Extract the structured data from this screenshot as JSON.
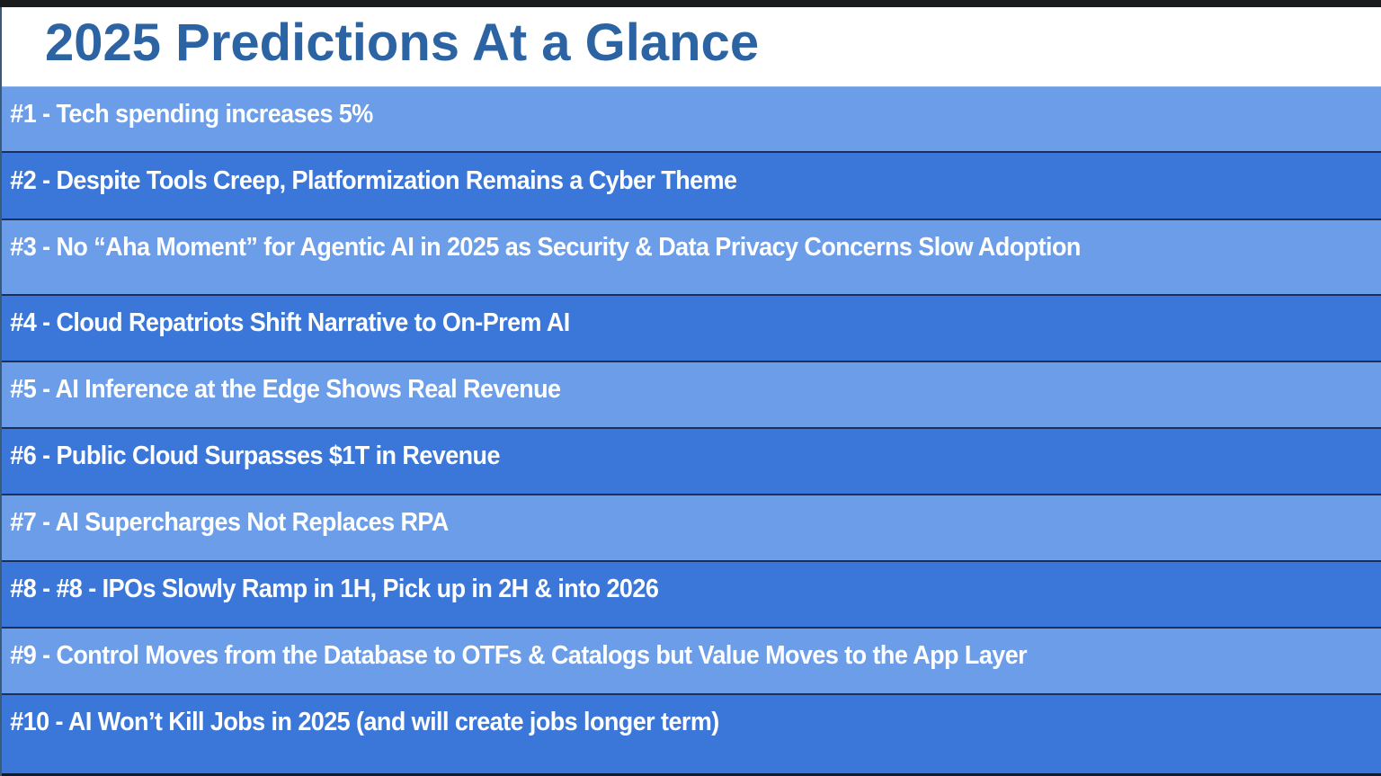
{
  "slide": {
    "title": "2025 Predictions At a Glance",
    "colors": {
      "title": "#2b63a3",
      "row_light": "#6b9de8",
      "row_dark": "#3b77d8",
      "row_text": "#ffffff",
      "row_border": "#1c2f5a"
    },
    "predictions": [
      {
        "label": "#1 - Tech spending increases 5%"
      },
      {
        "label": "#2 - Despite Tools Creep, Platformization Remains a Cyber Theme"
      },
      {
        "label": "#3 - No “Aha Moment” for Agentic AI in 2025 as Security & Data Privacy Concerns Slow Adoption"
      },
      {
        "label": "#4 - Cloud Repatriots Shift Narrative to On-Prem AI"
      },
      {
        "label": "#5 - AI Inference at the Edge Shows Real Revenue"
      },
      {
        "label": "#6 - Public Cloud Surpasses $1T in Revenue"
      },
      {
        "label": "#7 - AI Supercharges Not Replaces RPA"
      },
      {
        "label": "#8 - #8 - IPOs Slowly Ramp in 1H, Pick up in 2H & into 2026"
      },
      {
        "label": "#9 - Control Moves from the Database to OTFs & Catalogs but Value Moves to the App Layer"
      },
      {
        "label": "#10 - AI Won’t Kill Jobs in 2025 (and will create jobs longer term)"
      }
    ]
  }
}
